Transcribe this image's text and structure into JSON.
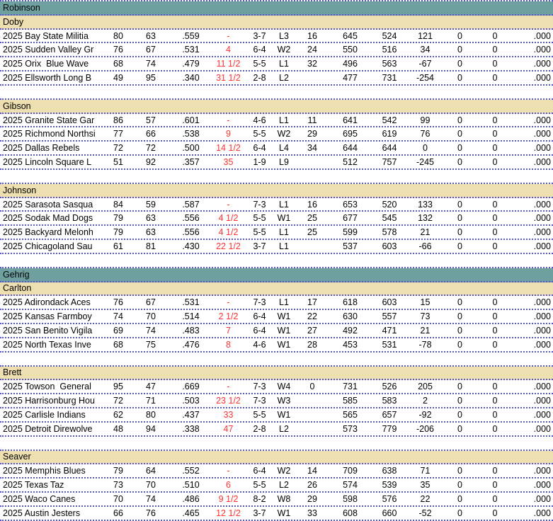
{
  "colors": {
    "league_header_bg": "#6FA0A0",
    "division_header_bg": "#EDDFAF",
    "row_border": "#5757D1",
    "games_back_text": "#FF3333",
    "text": "#000000",
    "row_bg": "#FFFFFF"
  },
  "leagues": [
    {
      "name": "Robinson",
      "divisions": [
        {
          "name": "Doby",
          "teams": [
            {
              "name": "2025 Bay State Militia",
              "w": "80",
              "l": "63",
              "pct": ".559",
              "gb": "-",
              "l10": "3-7",
              "strk": "L3",
              "magic": "16",
              "rs": "645",
              "ra": "524",
              "diff": "121",
              "n1": "0",
              "n2": "0",
              "pct2": ".000"
            },
            {
              "name": "2025 Sudden Valley Gr",
              "w": "76",
              "l": "67",
              "pct": ".531",
              "gb": "4",
              "l10": "6-4",
              "strk": "W2",
              "magic": "24",
              "rs": "550",
              "ra": "516",
              "diff": "34",
              "n1": "0",
              "n2": "0",
              "pct2": ".000"
            },
            {
              "name": "2025 Orix  Blue Wave",
              "w": "68",
              "l": "74",
              "pct": ".479",
              "gb": "11 1/2",
              "l10": "5-5",
              "strk": "L1",
              "magic": "32",
              "rs": "496",
              "ra": "563",
              "diff": "-67",
              "n1": "0",
              "n2": "0",
              "pct2": ".000"
            },
            {
              "name": "2025 Ellsworth Long B",
              "w": "49",
              "l": "95",
              "pct": ".340",
              "gb": "31 1/2",
              "l10": "2-8",
              "strk": "L2",
              "magic": "",
              "rs": "477",
              "ra": "731",
              "diff": "-254",
              "n1": "0",
              "n2": "0",
              "pct2": ".000"
            }
          ]
        },
        {
          "name": "Gibson",
          "teams": [
            {
              "name": "2025 Granite State Gar",
              "w": "86",
              "l": "57",
              "pct": ".601",
              "gb": "-",
              "l10": "4-6",
              "strk": "L1",
              "magic": "11",
              "rs": "641",
              "ra": "542",
              "diff": "99",
              "n1": "0",
              "n2": "0",
              "pct2": ".000"
            },
            {
              "name": "2025 Richmond Northsi",
              "w": "77",
              "l": "66",
              "pct": ".538",
              "gb": "9",
              "l10": "5-5",
              "strk": "W2",
              "magic": "29",
              "rs": "695",
              "ra": "619",
              "diff": "76",
              "n1": "0",
              "n2": "0",
              "pct2": ".000"
            },
            {
              "name": "2025 Dallas Rebels",
              "w": "72",
              "l": "72",
              "pct": ".500",
              "gb": "14 1/2",
              "l10": "6-4",
              "strk": "L4",
              "magic": "34",
              "rs": "644",
              "ra": "644",
              "diff": "0",
              "n1": "0",
              "n2": "0",
              "pct2": ".000"
            },
            {
              "name": "2025 Lincoln Square L",
              "w": "51",
              "l": "92",
              "pct": ".357",
              "gb": "35",
              "l10": "1-9",
              "strk": "L9",
              "magic": "",
              "rs": "512",
              "ra": "757",
              "diff": "-245",
              "n1": "0",
              "n2": "0",
              "pct2": ".000"
            }
          ]
        },
        {
          "name": "Johnson",
          "teams": [
            {
              "name": "2025 Sarasota Sasqua",
              "w": "84",
              "l": "59",
              "pct": ".587",
              "gb": "-",
              "l10": "7-3",
              "strk": "L1",
              "magic": "16",
              "rs": "653",
              "ra": "520",
              "diff": "133",
              "n1": "0",
              "n2": "0",
              "pct2": ".000"
            },
            {
              "name": "2025 Sodak Mad Dogs",
              "w": "79",
              "l": "63",
              "pct": ".556",
              "gb": "4 1/2",
              "l10": "5-5",
              "strk": "W1",
              "magic": "25",
              "rs": "677",
              "ra": "545",
              "diff": "132",
              "n1": "0",
              "n2": "0",
              "pct2": ".000"
            },
            {
              "name": "2025 Backyard Melonh",
              "w": "79",
              "l": "63",
              "pct": ".556",
              "gb": "4 1/2",
              "l10": "5-5",
              "strk": "L1",
              "magic": "25",
              "rs": "599",
              "ra": "578",
              "diff": "21",
              "n1": "0",
              "n2": "0",
              "pct2": ".000"
            },
            {
              "name": "2025 Chicagoland Sau",
              "w": "61",
              "l": "81",
              "pct": ".430",
              "gb": "22 1/2",
              "l10": "3-7",
              "strk": "L1",
              "magic": "",
              "rs": "537",
              "ra": "603",
              "diff": "-66",
              "n1": "0",
              "n2": "0",
              "pct2": ".000"
            }
          ]
        }
      ]
    },
    {
      "name": "Gehrig",
      "divisions": [
        {
          "name": "Carlton",
          "teams": [
            {
              "name": "2025 Adirondack Aces",
              "w": "76",
              "l": "67",
              "pct": ".531",
              "gb": "-",
              "l10": "7-3",
              "strk": "L1",
              "magic": "17",
              "rs": "618",
              "ra": "603",
              "diff": "15",
              "n1": "0",
              "n2": "0",
              "pct2": ".000"
            },
            {
              "name": "2025 Kansas Farmboy",
              "w": "74",
              "l": "70",
              "pct": ".514",
              "gb": "2 1/2",
              "l10": "6-4",
              "strk": "W1",
              "magic": "22",
              "rs": "630",
              "ra": "557",
              "diff": "73",
              "n1": "0",
              "n2": "0",
              "pct2": ".000"
            },
            {
              "name": "2025 San Benito Vigila",
              "w": "69",
              "l": "74",
              "pct": ".483",
              "gb": "7",
              "l10": "6-4",
              "strk": "W1",
              "magic": "27",
              "rs": "492",
              "ra": "471",
              "diff": "21",
              "n1": "0",
              "n2": "0",
              "pct2": ".000"
            },
            {
              "name": "2025 North Texas Inve",
              "w": "68",
              "l": "75",
              "pct": ".476",
              "gb": "8",
              "l10": "4-6",
              "strk": "W1",
              "magic": "28",
              "rs": "453",
              "ra": "531",
              "diff": "-78",
              "n1": "0",
              "n2": "0",
              "pct2": ".000"
            }
          ]
        },
        {
          "name": "Brett",
          "teams": [
            {
              "name": "2025 Towson  General",
              "w": "95",
              "l": "47",
              "pct": ".669",
              "gb": "-",
              "l10": "7-3",
              "strk": "W4",
              "magic": "0",
              "rs": "731",
              "ra": "526",
              "diff": "205",
              "n1": "0",
              "n2": "0",
              "pct2": ".000"
            },
            {
              "name": "2025 Harrisonburg Hou",
              "w": "72",
              "l": "71",
              "pct": ".503",
              "gb": "23 1/2",
              "l10": "7-3",
              "strk": "W3",
              "magic": "",
              "rs": "585",
              "ra": "583",
              "diff": "2",
              "n1": "0",
              "n2": "0",
              "pct2": ".000"
            },
            {
              "name": "2025 Carlisle Indians",
              "w": "62",
              "l": "80",
              "pct": ".437",
              "gb": "33",
              "l10": "5-5",
              "strk": "W1",
              "magic": "",
              "rs": "565",
              "ra": "657",
              "diff": "-92",
              "n1": "0",
              "n2": "0",
              "pct2": ".000"
            },
            {
              "name": "2025 Detroit Direwolve",
              "w": "48",
              "l": "94",
              "pct": ".338",
              "gb": "47",
              "l10": "2-8",
              "strk": "L2",
              "magic": "",
              "rs": "573",
              "ra": "779",
              "diff": "-206",
              "n1": "0",
              "n2": "0",
              "pct2": ".000"
            }
          ]
        },
        {
          "name": "Seaver",
          "teams": [
            {
              "name": "2025 Memphis Blues",
              "w": "79",
              "l": "64",
              "pct": ".552",
              "gb": "-",
              "l10": "6-4",
              "strk": "W2",
              "magic": "14",
              "rs": "709",
              "ra": "638",
              "diff": "71",
              "n1": "0",
              "n2": "0",
              "pct2": ".000"
            },
            {
              "name": "2025 Texas Taz",
              "w": "73",
              "l": "70",
              "pct": ".510",
              "gb": "6",
              "l10": "5-5",
              "strk": "L2",
              "magic": "26",
              "rs": "574",
              "ra": "539",
              "diff": "35",
              "n1": "0",
              "n2": "0",
              "pct2": ".000"
            },
            {
              "name": "2025 Waco Canes",
              "w": "70",
              "l": "74",
              "pct": ".486",
              "gb": "9 1/2",
              "l10": "8-2",
              "strk": "W8",
              "magic": "29",
              "rs": "598",
              "ra": "576",
              "diff": "22",
              "n1": "0",
              "n2": "0",
              "pct2": ".000"
            },
            {
              "name": "2025 Austin Jesters",
              "w": "66",
              "l": "76",
              "pct": ".465",
              "gb": "12 1/2",
              "l10": "3-7",
              "strk": "W1",
              "magic": "33",
              "rs": "608",
              "ra": "660",
              "diff": "-52",
              "n1": "0",
              "n2": "0",
              "pct2": ".000"
            }
          ]
        }
      ]
    }
  ]
}
